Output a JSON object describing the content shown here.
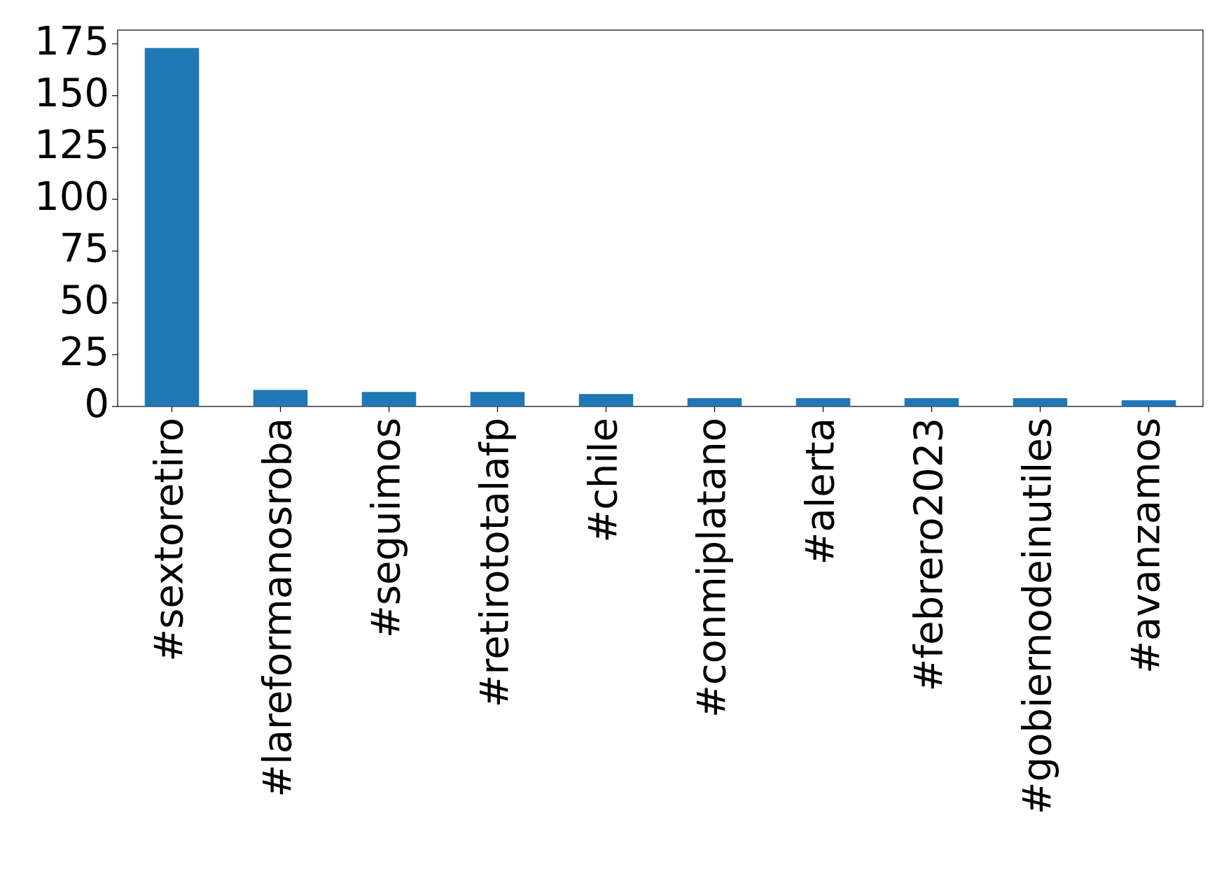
{
  "chart_data": {
    "type": "bar",
    "categories": [
      "#sextoretiro",
      "#lareformanosroba",
      "#seguimos",
      "#retirototalafp",
      "#chile",
      "#conmiplatano",
      "#alerta",
      "#febrero2023",
      "#gobiernodeinutiles",
      "#avanzamos"
    ],
    "values": [
      173,
      8,
      7,
      7,
      6,
      4,
      4,
      4,
      4,
      3
    ],
    "color": "#1f77b4",
    "ylim": [
      0,
      181.65
    ],
    "yticks": [
      0,
      25,
      50,
      75,
      100,
      125,
      150,
      175
    ],
    "grid": false
  }
}
